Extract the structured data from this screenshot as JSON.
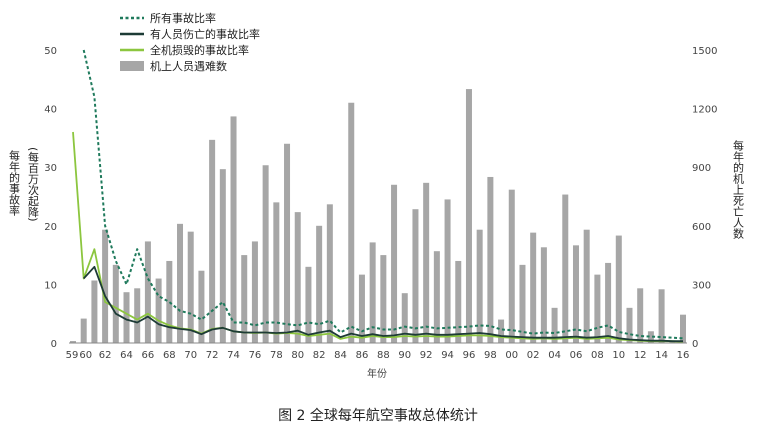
{
  "caption": "图 2  全球每年航空事故总体统计",
  "chart_data": {
    "type": "bar",
    "xlabel": "年份",
    "ylabel_left": "每年的事故率 (每百万次起降)",
    "ylabel_left_main": "每年的事故率",
    "ylabel_left_sub": "(每百万次起降)",
    "ylabel_right": "每年的机上死亡人数",
    "left_ylim": [
      0,
      50
    ],
    "right_ylim": [
      0,
      1500
    ],
    "left_ticks": [
      "0",
      "10",
      "20",
      "30",
      "40",
      "50"
    ],
    "right_ticks": [
      "0",
      "300",
      "600",
      "900",
      "1200",
      "1500"
    ],
    "x_tick_labels": [
      "59",
      "60",
      "62",
      "64",
      "66",
      "68",
      "70",
      "72",
      "74",
      "76",
      "78",
      "80",
      "82",
      "84",
      "86",
      "88",
      "90",
      "92",
      "94",
      "96",
      "98",
      "00",
      "02",
      "04",
      "06",
      "08",
      "10",
      "12",
      "14",
      "16"
    ],
    "legend_position": "top-left",
    "grid": false,
    "years": [
      1959,
      1960,
      1961,
      1962,
      1963,
      1964,
      1965,
      1966,
      1967,
      1968,
      1969,
      1970,
      1971,
      1972,
      1973,
      1974,
      1975,
      1976,
      1977,
      1978,
      1979,
      1980,
      1981,
      1982,
      1983,
      1984,
      1985,
      1986,
      1987,
      1988,
      1989,
      1990,
      1991,
      1992,
      1993,
      1994,
      1995,
      1996,
      1997,
      1998,
      1999,
      2000,
      2001,
      2002,
      2003,
      2004,
      2005,
      2006,
      2007,
      2008,
      2009,
      2010,
      2011,
      2012,
      2013,
      2014,
      2015,
      2016
    ],
    "series": [
      {
        "name": "所有事故比率",
        "kind": "line",
        "axis": "left",
        "style": "dotted",
        "color": "#1f7a5c",
        "values": [
          null,
          50,
          42,
          20,
          14,
          10,
          16,
          11,
          8,
          7,
          5.5,
          5,
          4,
          5.5,
          7,
          3.5,
          3.5,
          3,
          3.5,
          3.5,
          3.2,
          3,
          3.5,
          3.2,
          3.8,
          1.8,
          2.8,
          2,
          2.7,
          2.3,
          2.3,
          2.8,
          2.5,
          2.8,
          2.5,
          2.6,
          2.7,
          2.8,
          3,
          2.9,
          2.3,
          2.2,
          1.9,
          1.6,
          1.8,
          1.7,
          2,
          2.3,
          2,
          2.6,
          3,
          1.9,
          1.5,
          1.2,
          1.1,
          1,
          0.9,
          0.8
        ]
      },
      {
        "name": "有人员伤亡的事故比率",
        "kind": "line",
        "axis": "left",
        "style": "solid",
        "color": "#1d3b36",
        "values": [
          null,
          11,
          13,
          8,
          5,
          4,
          3.5,
          4.5,
          3.2,
          2.7,
          2.4,
          2.2,
          1.5,
          2.3,
          2.6,
          2,
          1.8,
          1.8,
          1.8,
          1.7,
          1.8,
          2.1,
          1.4,
          1.8,
          2.1,
          1,
          1.6,
          1.2,
          1.5,
          1.2,
          1.3,
          1.6,
          1.4,
          1.6,
          1.4,
          1.4,
          1.5,
          1.6,
          1.7,
          1.5,
          1.2,
          1.1,
          1,
          0.9,
          0.9,
          0.9,
          1,
          1.1,
          0.9,
          1,
          1.2,
          0.8,
          0.6,
          0.5,
          0.4,
          0.4,
          0.3,
          0.3
        ]
      },
      {
        "name": "全机损毁的事故比率",
        "kind": "line",
        "axis": "left",
        "style": "solid",
        "color": "#8cc63f",
        "values": [
          36,
          11,
          16,
          7,
          6,
          5,
          4,
          5,
          3.8,
          3,
          2.5,
          2.3,
          1.6,
          2.4,
          2.6,
          2,
          1.8,
          1.7,
          1.8,
          1.6,
          1.7,
          1.6,
          1.2,
          1.4,
          1.6,
          0.7,
          1.1,
          0.9,
          1.2,
          1,
          1,
          1.2,
          1.1,
          1.2,
          1.1,
          1.1,
          1.2,
          1.3,
          1.3,
          1.2,
          1,
          0.9,
          0.8,
          0.7,
          0.8,
          0.7,
          0.8,
          0.9,
          0.7,
          0.8,
          0.9,
          0.6,
          0.5,
          0.4,
          0.3,
          0.3,
          0.3,
          0.2
        ]
      },
      {
        "name": "机上人员遇难数",
        "kind": "bar",
        "axis": "right",
        "color": "#a6a6a6",
        "values": [
          10,
          125,
          320,
          580,
          400,
          260,
          280,
          520,
          330,
          420,
          610,
          570,
          370,
          1040,
          890,
          1160,
          450,
          520,
          910,
          720,
          1020,
          670,
          390,
          600,
          710,
          0,
          1230,
          350,
          515,
          450,
          810,
          255,
          685,
          820,
          470,
          735,
          420,
          1300,
          580,
          850,
          120,
          785,
          400,
          565,
          490,
          180,
          760,
          500,
          580,
          350,
          410,
          550,
          180,
          280,
          60,
          275,
          10,
          145
        ]
      }
    ]
  }
}
